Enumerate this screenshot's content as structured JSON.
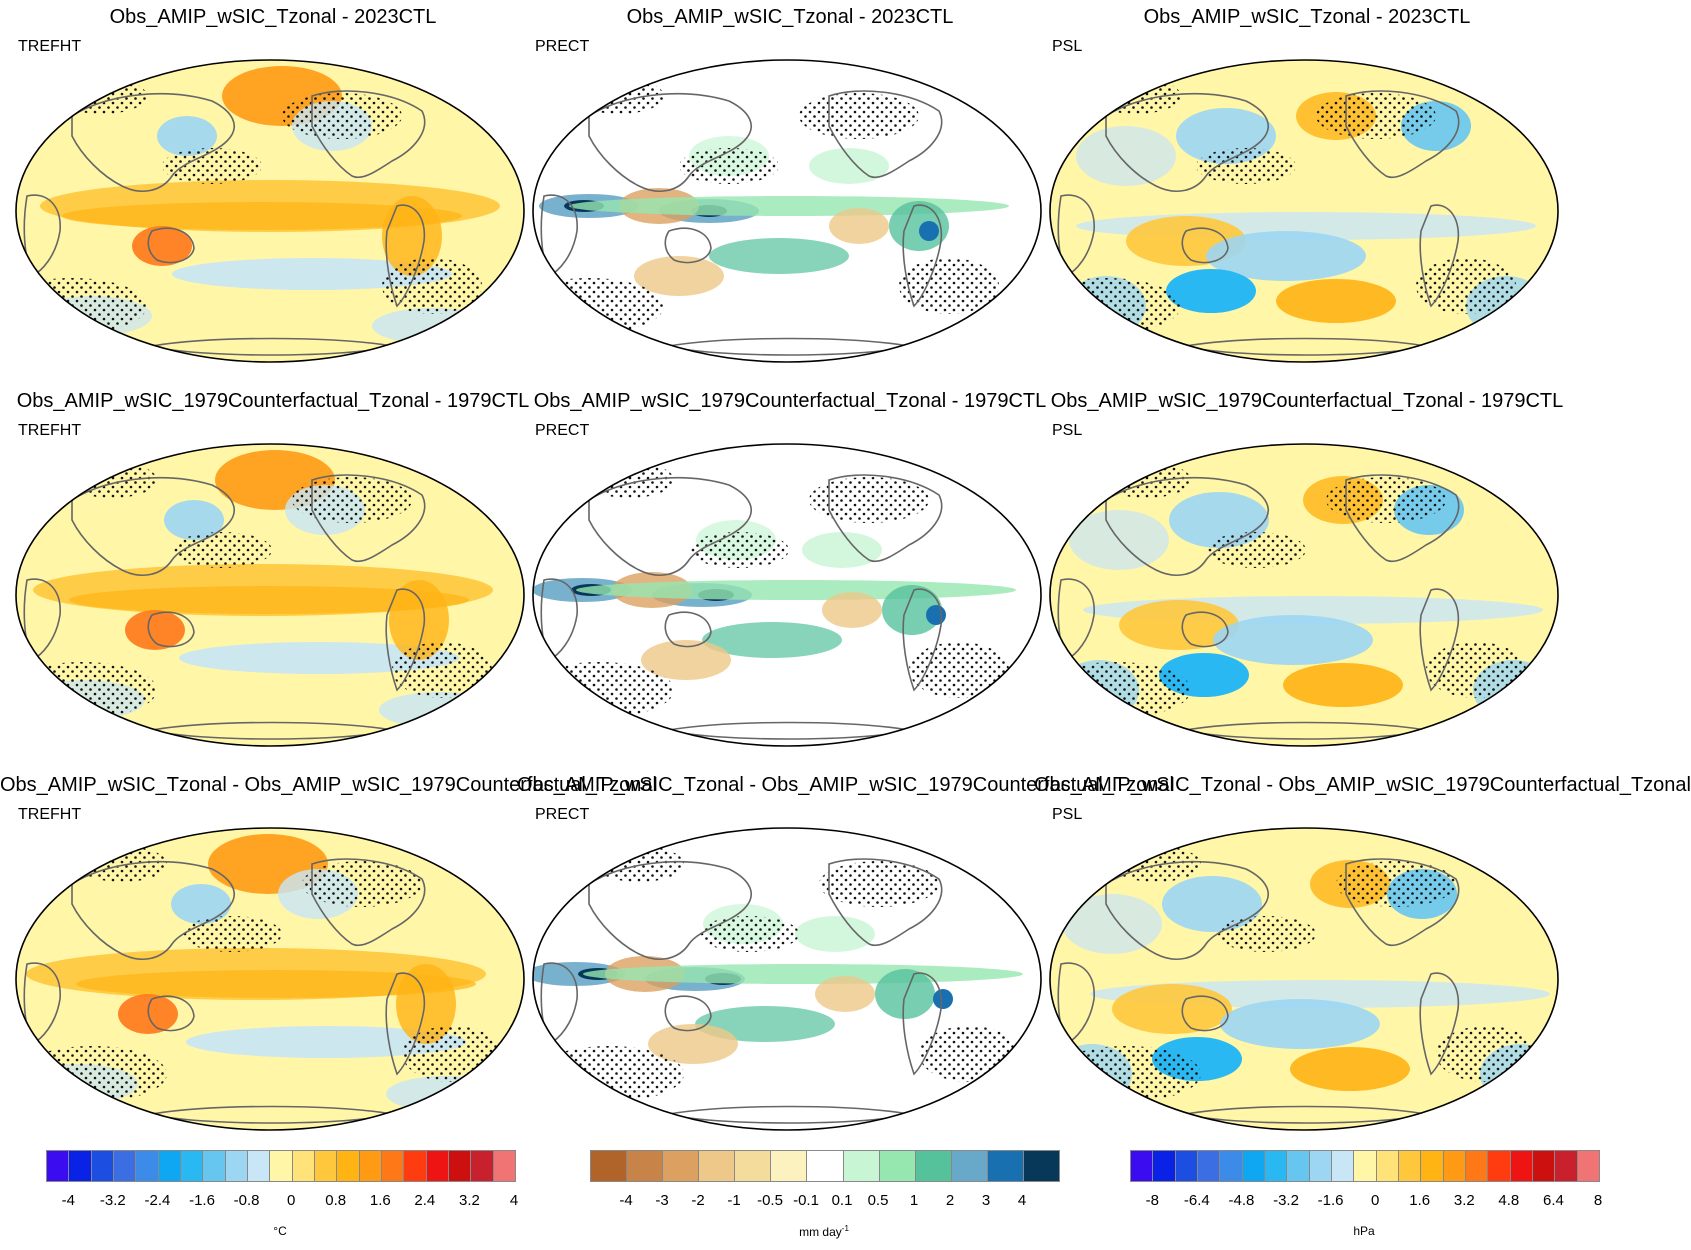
{
  "rows": [
    {
      "titles": [
        "Obs_AMIP_wSIC_Tzonal - 2023CTL",
        "Obs_AMIP_wSIC_Tzonal - 2023CTL",
        "Obs_AMIP_wSIC_Tzonal - 2023CTL"
      ]
    },
    {
      "titles": [
        "Obs_AMIP_wSIC_1979Counterfactual_Tzonal - 1979CTL",
        "Obs_AMIP_wSIC_1979Counterfactual_Tzonal - 1979CTL",
        "Obs_AMIP_wSIC_1979Counterfactual_Tzonal - 1979CTL"
      ]
    },
    {
      "titles": [
        "Obs_AMIP_wSIC_Tzonal - Obs_AMIP_wSIC_1979Counterfactual_Tzonal",
        "Obs_AMIP_wSIC_Tzonal - Obs_AMIP_wSIC_1979Counterfactual_Tzonal",
        "Obs_AMIP_wSIC_Tzonal - Obs_AMIP_wSIC_1979Counterfactual_Tzonal"
      ]
    }
  ],
  "variables": [
    "TREFHT",
    "PRECT",
    "PSL"
  ],
  "colorbars": [
    {
      "variable": "TREFHT",
      "colors": [
        "#3c0cf0",
        "#0a22e6",
        "#1c4ee2",
        "#3a6ee2",
        "#3d8be8",
        "#10a7f2",
        "#2ab8f2",
        "#66c6f0",
        "#9cd6f2",
        "#c8e6f6",
        "#fff6a8",
        "#ffe278",
        "#ffc83c",
        "#ffb414",
        "#ff9a14",
        "#ff7818",
        "#ff3c10",
        "#ee1414",
        "#cc1010",
        "#c8202c",
        "#f07474"
      ],
      "ticks": [
        "-4",
        "-3.2",
        "-2.4",
        "-1.6",
        "-0.8",
        "0",
        "0.8",
        "1.6",
        "2.4",
        "3.2",
        "4"
      ],
      "unit": "°C"
    },
    {
      "variable": "PRECT",
      "colors": [
        "#b0642a",
        "#c88448",
        "#dca060",
        "#eec888",
        "#f4dc9c",
        "#fbf2c0",
        "#ffffff",
        "#c8f5d4",
        "#96e6b0",
        "#56c29c",
        "#68a8c8",
        "#1870b0",
        "#07385a"
      ],
      "ticks": [
        "-4",
        "-3",
        "-2",
        "-1",
        "-0.5",
        "-0.1",
        "0.1",
        "0.5",
        "1",
        "2",
        "3",
        "4"
      ],
      "unit": "mm day",
      "unit_sup": "-1"
    },
    {
      "variable": "PSL",
      "colors": [
        "#3c0cf0",
        "#0a22e6",
        "#1c4ee2",
        "#3a6ee2",
        "#3d8be8",
        "#10a7f2",
        "#2ab8f2",
        "#66c6f0",
        "#9cd6f2",
        "#c8e6f6",
        "#fff6a8",
        "#ffe278",
        "#ffc83c",
        "#ffb414",
        "#ff9a14",
        "#ff7818",
        "#ff3c10",
        "#ee1414",
        "#cc1010",
        "#c8202c",
        "#f07474"
      ],
      "ticks": [
        "-8",
        "-6.4",
        "-4.8",
        "-3.2",
        "-1.6",
        "0",
        "1.6",
        "3.2",
        "4.8",
        "6.4",
        "8"
      ],
      "unit": "hPa"
    }
  ]
}
